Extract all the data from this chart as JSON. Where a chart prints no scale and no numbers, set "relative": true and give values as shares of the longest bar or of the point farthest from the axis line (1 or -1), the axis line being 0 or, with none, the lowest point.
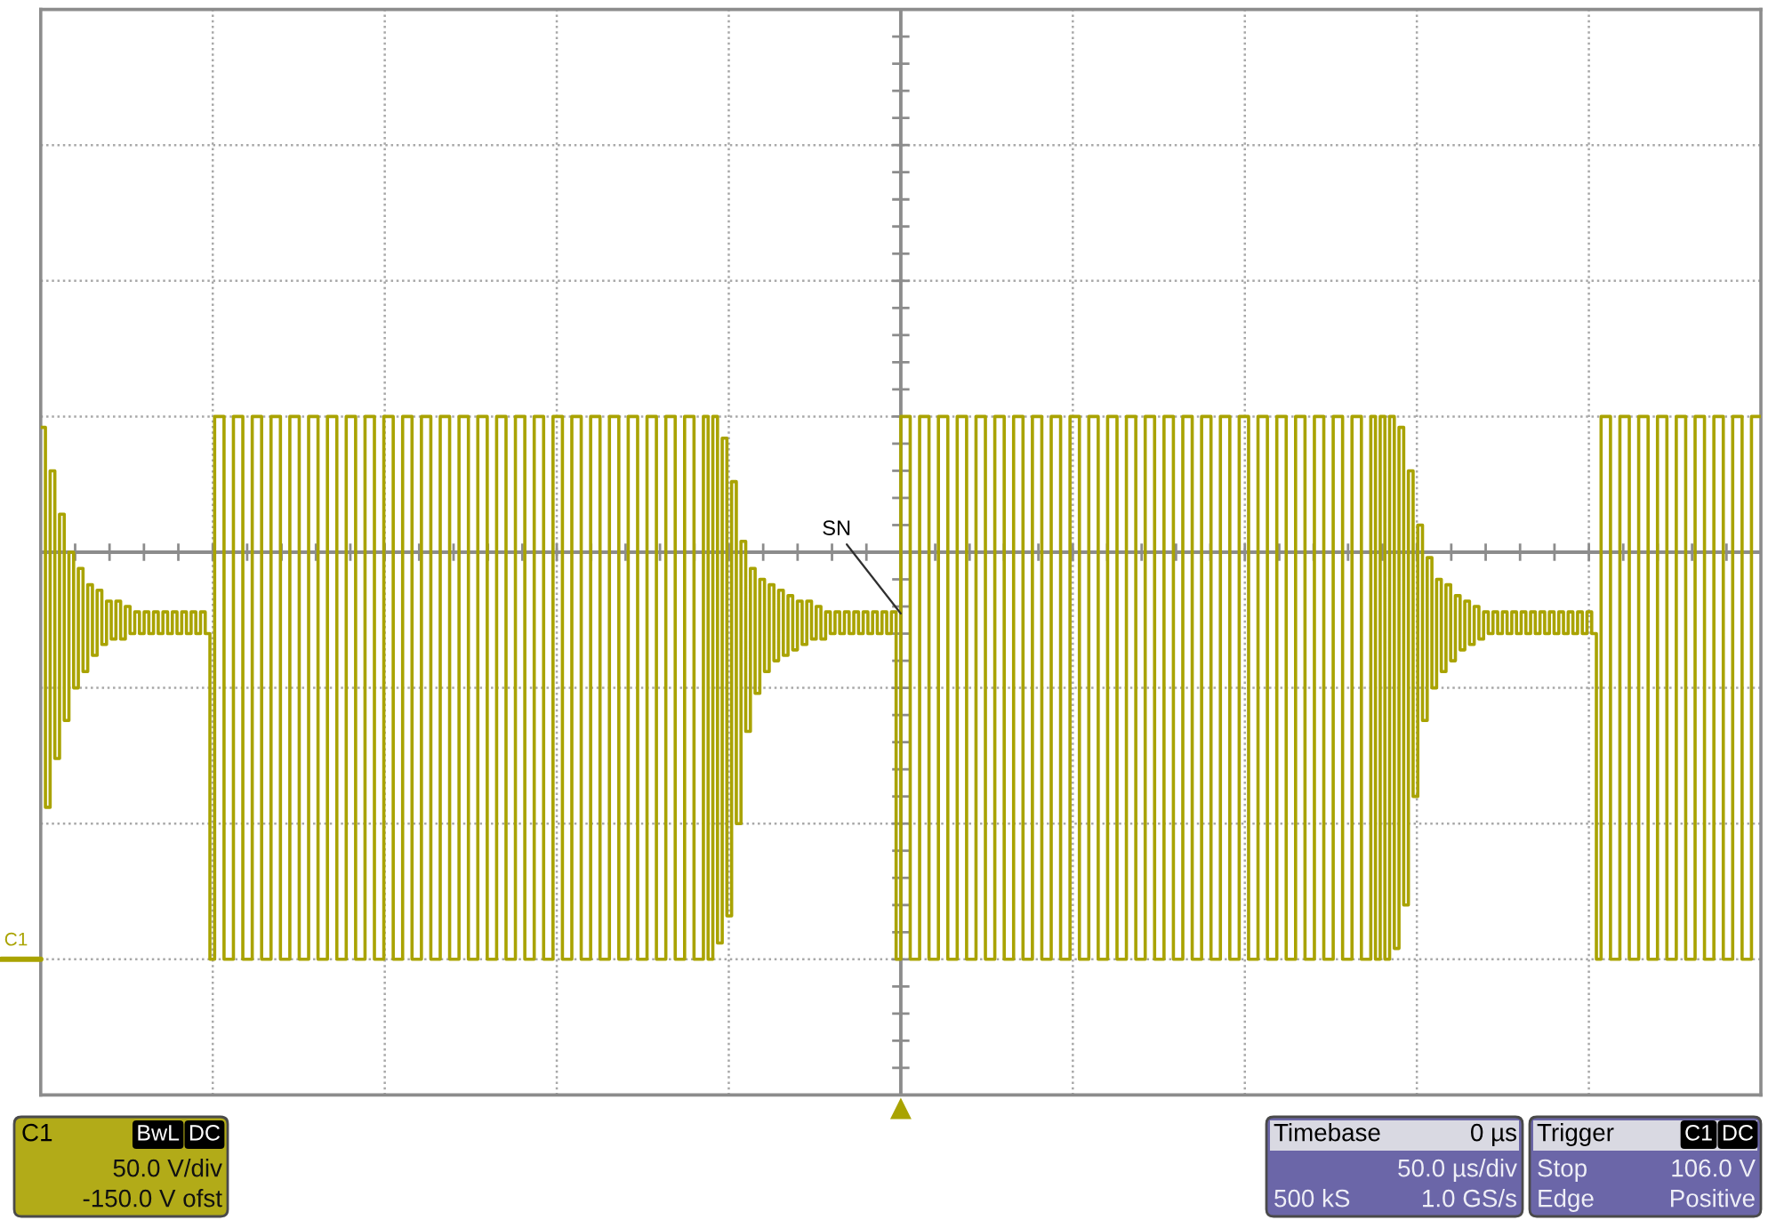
{
  "chart_data": {
    "type": "step",
    "relative": true,
    "categories": [
      null,
      null,
      null,
      null,
      null,
      null,
      null,
      null,
      null,
      null,
      null,
      null,
      null,
      null,
      null,
      null,
      null,
      null,
      null,
      null,
      null,
      null,
      null,
      null,
      null,
      null,
      null,
      null,
      null,
      null,
      null,
      null,
      null,
      null,
      null,
      null,
      null,
      null,
      null,
      null,
      null,
      null,
      null,
      null,
      null,
      null,
      null,
      null,
      null,
      null,
      null,
      null,
      null,
      null,
      null,
      null,
      null,
      null,
      null,
      null,
      null,
      null,
      null,
      null,
      null,
      null,
      null,
      null,
      null,
      null,
      null,
      null,
      null,
      null,
      null,
      null,
      null,
      null,
      null,
      null,
      null,
      null,
      null,
      null,
      null,
      null,
      null,
      null,
      null,
      null,
      null,
      null,
      null,
      null,
      null,
      null,
      null,
      null,
      null,
      null,
      null,
      null,
      null,
      null,
      null,
      null,
      null,
      null,
      null,
      null,
      null,
      null,
      null,
      null,
      null,
      null,
      null,
      null,
      null,
      null,
      null,
      null,
      null,
      null,
      null,
      null,
      null,
      null,
      null,
      null,
      null,
      null,
      null,
      null,
      null,
      null,
      null,
      null,
      null,
      null,
      null,
      null,
      null,
      null,
      null,
      null,
      null,
      null,
      null,
      null,
      null,
      null,
      null,
      null,
      null,
      null,
      null,
      null,
      null,
      null,
      null,
      null,
      null,
      null,
      null,
      null,
      null,
      null,
      null,
      null,
      null,
      null,
      null,
      null,
      null,
      null,
      null,
      null,
      null,
      null,
      null,
      null,
      null,
      null,
      null,
      null,
      null,
      null,
      null,
      null,
      null,
      null,
      null,
      null,
      null,
      null,
      null,
      null,
      null,
      null,
      null,
      null,
      null,
      null,
      null,
      null,
      null,
      null,
      null,
      null,
      null,
      null,
      null,
      null,
      null,
      null,
      null,
      null,
      null,
      null,
      null,
      null,
      null,
      null,
      null,
      null,
      null,
      null,
      null,
      null,
      null,
      null,
      null,
      null,
      null,
      null,
      null,
      null,
      null,
      null,
      null,
      null,
      null,
      null,
      null,
      null,
      null,
      null,
      null,
      null,
      null,
      null,
      null,
      null,
      null,
      null,
      null,
      null,
      null,
      null,
      null,
      null,
      null,
      null,
      null,
      null,
      null,
      null,
      null,
      null,
      null,
      null,
      null,
      null,
      null,
      null,
      null,
      null,
      null,
      null,
      null,
      null,
      null,
      null,
      null,
      null,
      null,
      null,
      null,
      null,
      null,
      null,
      null,
      null,
      null,
      null,
      null,
      null,
      null,
      null,
      null,
      null,
      null,
      null,
      null,
      null,
      null,
      null,
      null,
      null,
      null,
      null,
      null,
      null,
      null,
      null,
      null,
      null,
      null,
      null,
      null,
      null,
      null,
      null,
      null,
      null,
      null,
      null,
      null,
      null,
      null,
      null,
      null,
      null,
      null,
      null,
      null,
      null,
      null,
      null,
      null,
      null,
      null,
      null,
      null,
      null,
      null,
      null,
      null,
      null,
      null,
      null,
      null,
      null,
      null,
      null,
      null,
      null,
      null,
      null,
      null,
      null,
      null,
      null,
      null,
      null,
      null
    ],
    "series": [
      {
        "color": "#a9a300",
        "values": [
          0.98,
          0.28,
          0.9,
          0.37,
          0.82,
          0.44,
          0.75,
          0.5,
          0.72,
          0.53,
          0.69,
          0.56,
          0.68,
          0.58,
          0.66,
          0.59,
          0.66,
          0.59,
          0.65,
          0.6,
          0.64,
          0.6,
          0.64,
          0.6,
          0.64,
          0.6,
          0.64,
          0.6,
          0.64,
          0.6,
          0.64,
          0.6,
          0.64,
          0.6,
          0.64,
          0.6,
          0,
          1,
          1,
          0,
          0,
          1,
          1,
          0,
          0,
          1,
          1,
          0,
          0,
          1,
          1,
          0,
          0,
          1,
          1,
          0,
          0,
          1,
          1,
          0,
          0,
          1,
          1,
          0,
          0,
          1,
          1,
          0,
          0,
          1,
          1,
          0,
          0,
          1,
          1,
          0,
          0,
          1,
          1,
          0,
          0,
          1,
          1,
          0,
          0,
          1,
          1,
          0,
          0,
          1,
          1,
          0,
          0,
          1,
          1,
          0,
          0,
          1,
          1,
          0,
          0,
          1,
          1,
          0,
          0,
          1,
          1,
          0,
          0,
          1,
          1,
          0,
          0,
          1,
          1,
          0,
          0,
          1,
          1,
          0,
          0,
          1,
          1,
          0,
          0,
          1,
          1,
          0,
          0,
          1,
          1,
          0,
          0,
          1,
          1,
          0,
          0,
          1,
          1,
          0,
          0,
          1,
          0,
          1,
          0.03,
          0.96,
          0.08,
          0.88,
          0.25,
          0.77,
          0.42,
          0.72,
          0.49,
          0.7,
          0.53,
          0.69,
          0.55,
          0.68,
          0.56,
          0.67,
          0.57,
          0.66,
          0.58,
          0.66,
          0.59,
          0.65,
          0.59,
          0.64,
          0.6,
          0.64,
          0.6,
          0.64,
          0.6,
          0.64,
          0.6,
          0.64,
          0.6,
          0.64,
          0.6,
          0.64,
          0.6,
          0.64,
          0,
          1,
          1,
          0,
          0,
          1,
          1,
          0,
          0,
          1,
          1,
          0,
          0,
          1,
          1,
          0,
          0,
          1,
          1,
          0,
          0,
          1,
          1,
          0,
          0,
          1,
          1,
          0,
          0,
          1,
          1,
          0,
          0,
          1,
          1,
          0,
          0,
          1,
          1,
          0,
          0,
          1,
          1,
          0,
          0,
          1,
          1,
          0,
          0,
          1,
          1,
          0,
          0,
          1,
          1,
          0,
          0,
          1,
          1,
          0,
          0,
          1,
          1,
          0,
          0,
          1,
          1,
          0,
          0,
          1,
          1,
          0,
          0,
          1,
          1,
          0,
          0,
          1,
          1,
          0,
          0,
          1,
          1,
          0,
          0,
          1,
          1,
          0,
          0,
          1,
          1,
          0,
          0,
          1,
          1,
          0,
          0,
          1,
          1,
          0,
          0,
          1,
          0,
          1,
          0,
          1,
          0.02,
          0.98,
          0.1,
          0.9,
          0.3,
          0.8,
          0.44,
          0.74,
          0.5,
          0.7,
          0.53,
          0.69,
          0.55,
          0.67,
          0.57,
          0.66,
          0.58,
          0.65,
          0.59,
          0.64,
          0.6,
          0.64,
          0.6,
          0.64,
          0.6,
          0.64,
          0.6,
          0.64,
          0.6,
          0.64,
          0.6,
          0.64,
          0.6,
          0.64,
          0.6,
          0.64,
          0.6,
          0.64,
          0.6,
          0.64,
          0.6,
          0.64,
          0.6,
          0,
          1,
          1,
          0,
          0,
          1,
          1,
          0,
          0,
          1,
          1,
          0,
          0,
          1,
          1,
          0,
          0,
          1,
          1,
          0,
          0,
          1,
          1,
          0,
          0,
          1,
          1,
          0,
          0,
          1,
          1,
          0,
          0,
          1,
          1,
          1
        ]
      }
    ],
    "grid": true,
    "ref_lines": [
      {
        "axis": "y",
        "value": 0.75,
        "color": "#8c8c8c",
        "line_style": "solid"
      }
    ],
    "annotations": [
      "C1",
      "BwL",
      "DC",
      "50.0 V/div",
      "-150.0 V ofst",
      "Timebase",
      "0 µs",
      "50.0 µs/div",
      "500 kS",
      "1.0 GS/s",
      "Trigger",
      "C1",
      "DC",
      "Stop",
      "106.0 V",
      "Edge",
      "Positive",
      "SN",
      "C1"
    ]
  }
}
